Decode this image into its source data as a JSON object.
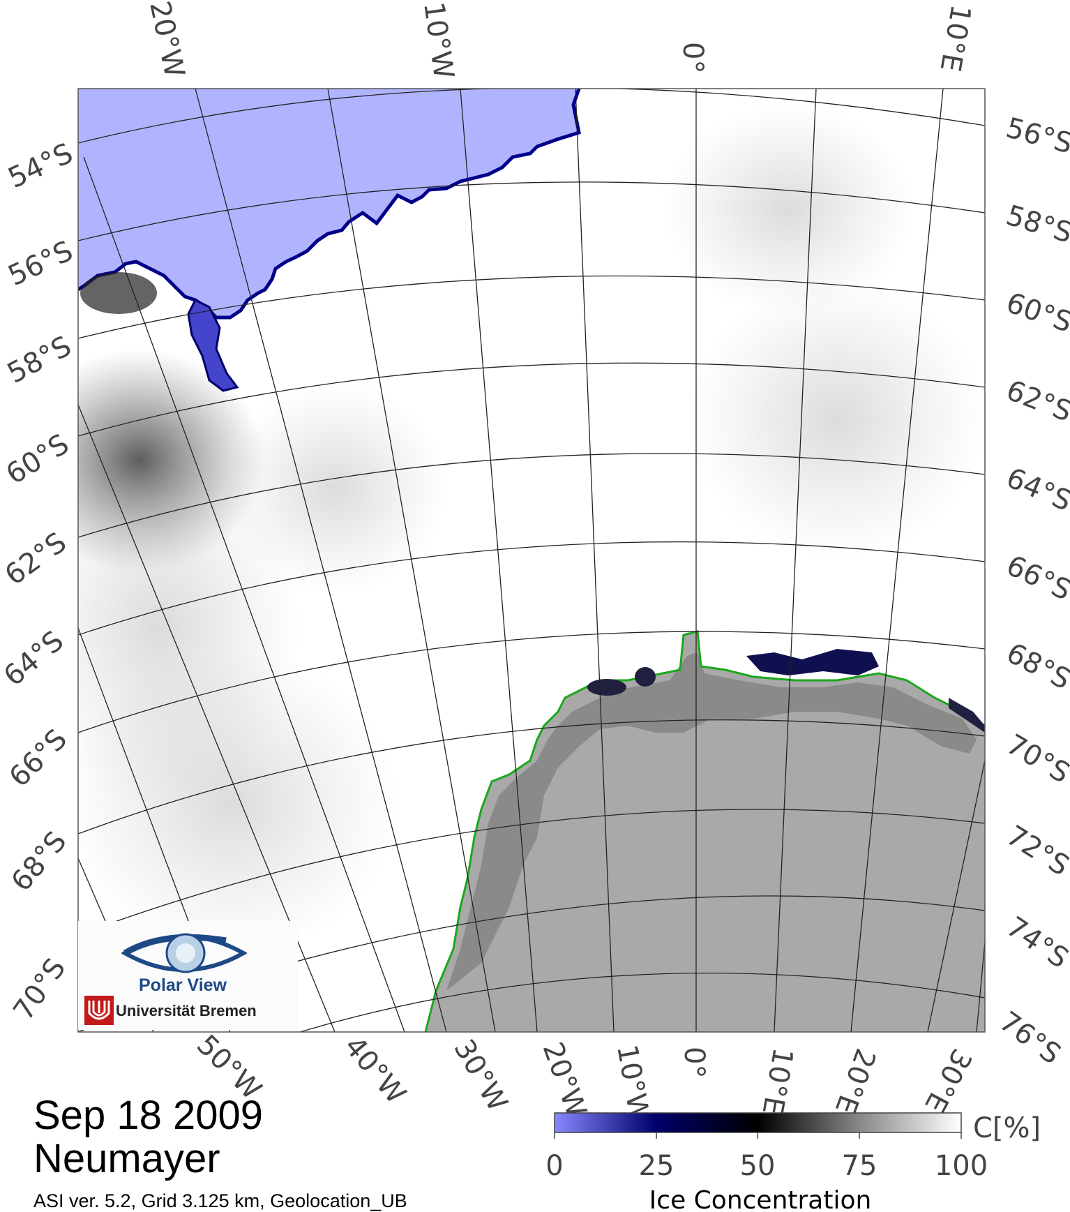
{
  "map": {
    "top_longitude_labels": [
      "20°W",
      "10°W",
      "0°",
      "10°E"
    ],
    "bottom_longitude_labels": [
      "50°W",
      "40°W",
      "30°W",
      "20°W",
      "10°W",
      "0°",
      "10°E",
      "20°E",
      "30°E"
    ],
    "left_latitude_labels": [
      "54°S",
      "56°S",
      "58°S",
      "60°S",
      "62°S",
      "64°S",
      "66°S",
      "68°S",
      "70°S"
    ],
    "right_latitude_labels": [
      "56°S",
      "58°S",
      "60°S",
      "62°S",
      "64°S",
      "66°S",
      "68°S",
      "70°S",
      "72°S",
      "74°S",
      "76°S"
    ],
    "colors": {
      "open_water": "#b0b4ff",
      "sea_ice_full": "#ffffff",
      "land": "#a9a9a9",
      "ice_shelf": "#8a8a8a",
      "coastline": "#1aa81a",
      "ice_edge": "#000099"
    }
  },
  "legend": {
    "ticks": [
      "0",
      "25",
      "50",
      "75",
      "100"
    ],
    "unit": "C[%]",
    "title": "Ice Concentration"
  },
  "caption": {
    "date": "Sep 18 2009",
    "station": "Neumayer",
    "info": "ASI ver. 5.2,  Grid 3.125 km, Geolocation_UB"
  },
  "logo": {
    "title": "Polar View",
    "institution": "Universität Bremen"
  }
}
